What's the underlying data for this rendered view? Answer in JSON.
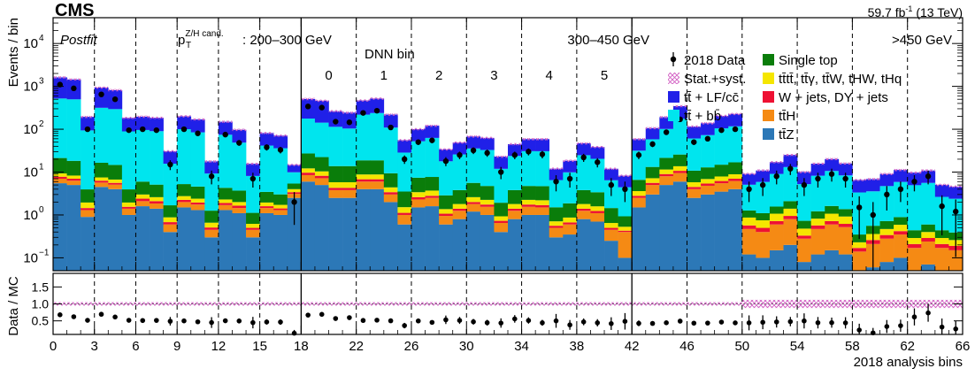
{
  "header": {
    "experiment": "CMS",
    "luminosity": "59.7 fb",
    "lumi_exponent": "-1",
    "energy": "(13 TeV)"
  },
  "annotations": {
    "fit_label": "Postfit",
    "pt_symbol": "p",
    "pt_subscript": "T",
    "pt_superscript": "Z/H cand.",
    "pt_range_1": ": 200–300 GeV",
    "pt_range_2": "300–450 GeV",
    "pt_range_3": ">450 GeV",
    "dnn_title": "DNN bin",
    "dnn_bins": [
      "0",
      "1",
      "2",
      "3",
      "4",
      "5"
    ]
  },
  "legend": [
    {
      "key": "data",
      "label": "2018 Data",
      "color": "#000000",
      "style": "marker"
    },
    {
      "key": "unc",
      "label": "Stat.+syst.",
      "color": "#d25fc3",
      "style": "hatch"
    },
    {
      "key": "ttlf",
      "label": "tt̄ + LF/cc̄",
      "color": "#2020e8",
      "style": "fill"
    },
    {
      "key": "ttbb",
      "label": "tt̄ + bb̄",
      "color": "#00e5ee",
      "style": "fill"
    },
    {
      "key": "singletop",
      "label": "Single top",
      "color": "#0a7d0a",
      "style": "fill"
    },
    {
      "key": "rare",
      "label": "tt̄tt̄, tt̄γ, tt̄W, tHW, tHq",
      "color": "#f5e600",
      "style": "fill"
    },
    {
      "key": "wjets",
      "label": "W + jets, DY + jets",
      "color": "#ee1133",
      "style": "fill"
    },
    {
      "key": "tth",
      "label": "tt̄H",
      "color": "#f58a14",
      "style": "fill"
    },
    {
      "key": "ttz",
      "label": "tt̄Z",
      "color": "#2c78b7",
      "style": "fill"
    }
  ],
  "axes": {
    "top_ylabel": "Events / bin",
    "ratio_ylabel": "Data / MC",
    "xlabel": "2018 analysis bins",
    "y_tick_labels": [
      "10",
      "10",
      "10",
      "10",
      "10",
      "10"
    ],
    "y_tick_exponents": [
      "−1",
      "0",
      "1",
      "2",
      "3",
      "4"
    ],
    "ratio_tick_labels": [
      "0.5",
      "1.0",
      "1.5"
    ],
    "x_tick_labels": [
      "0",
      "3",
      "6",
      "9",
      "12",
      "15",
      "18",
      "22",
      "26",
      "30",
      "34",
      "38",
      "42",
      "46",
      "50",
      "54",
      "58",
      "62",
      "66"
    ]
  },
  "chart_data": {
    "type": "bar",
    "stacked": true,
    "y_scale": "log",
    "ylim": [
      0.05,
      40000
    ],
    "ratio_ylim": [
      0.1,
      1.9
    ],
    "xlim": [
      0,
      66
    ],
    "x_ticks": [
      0,
      3,
      6,
      9,
      12,
      15,
      18,
      22,
      26,
      30,
      34,
      38,
      42,
      46,
      50,
      54,
      58,
      62,
      66
    ],
    "panel_boundaries": [
      18,
      42
    ],
    "dnn_boundaries": [
      3,
      6,
      9,
      12,
      15,
      22,
      26,
      30,
      34,
      38,
      46,
      50,
      54,
      58,
      62
    ],
    "stack_order": [
      "ttz",
      "tth",
      "wjets",
      "rare",
      "singletop",
      "ttbb",
      "ttlf"
    ],
    "bins": [
      {
        "ttz": 5.5,
        "tth": 1.5,
        "wjets": 0.8,
        "rare": 1.5,
        "singletop": 12,
        "ttbb": 500,
        "ttlf": 1100,
        "data": 1100
      },
      {
        "ttz": 5.0,
        "tth": 1.3,
        "wjets": 0.7,
        "rare": 1.3,
        "singletop": 10,
        "ttbb": 480,
        "ttlf": 950,
        "data": 900
      },
      {
        "ttz": 0.9,
        "tth": 0.4,
        "wjets": 0.15,
        "rare": 0.5,
        "singletop": 2,
        "ttbb": 90,
        "ttlf": 100,
        "data": 100
      },
      {
        "ttz": 4.5,
        "tth": 1.2,
        "wjets": 0.6,
        "rare": 1.2,
        "singletop": 9,
        "ttbb": 300,
        "ttlf": 620,
        "data": 650
      },
      {
        "ttz": 4.0,
        "tth": 1.1,
        "wjets": 0.5,
        "rare": 1.1,
        "singletop": 8,
        "ttbb": 280,
        "ttlf": 520,
        "data": 500
      },
      {
        "ttz": 1.0,
        "tth": 0.4,
        "wjets": 0.15,
        "rare": 0.4,
        "singletop": 2,
        "ttbb": 85,
        "ttlf": 95,
        "data": 95
      },
      {
        "ttz": 1.6,
        "tth": 0.5,
        "wjets": 0.3,
        "rare": 0.6,
        "singletop": 3,
        "ttbb": 90,
        "ttlf": 100,
        "data": 100
      },
      {
        "ttz": 1.4,
        "tth": 0.45,
        "wjets": 0.25,
        "rare": 0.5,
        "singletop": 2.5,
        "ttbb": 85,
        "ttlf": 95,
        "data": 95
      },
      {
        "ttz": 0.4,
        "tth": 0.2,
        "wjets": 0.08,
        "rare": 0.2,
        "singletop": 0.8,
        "ttbb": 14,
        "ttlf": 15,
        "data": 15
      },
      {
        "ttz": 1.5,
        "tth": 0.5,
        "wjets": 0.25,
        "rare": 0.5,
        "singletop": 2.5,
        "ttbb": 95,
        "ttlf": 100,
        "data": 100
      },
      {
        "ttz": 1.3,
        "tth": 0.45,
        "wjets": 0.2,
        "rare": 0.45,
        "singletop": 2.2,
        "ttbb": 80,
        "ttlf": 85,
        "data": 80
      },
      {
        "ttz": 0.3,
        "tth": 0.15,
        "wjets": 0.06,
        "rare": 0.15,
        "singletop": 0.6,
        "ttbb": 8,
        "ttlf": 8.5,
        "data": 8
      },
      {
        "ttz": 1.3,
        "tth": 0.4,
        "wjets": 0.2,
        "rare": 0.4,
        "singletop": 2,
        "ttbb": 70,
        "ttlf": 75,
        "data": 75
      },
      {
        "ttz": 1.1,
        "tth": 0.35,
        "wjets": 0.2,
        "rare": 0.35,
        "singletop": 1.7,
        "ttbb": 45,
        "ttlf": 48,
        "data": 48
      },
      {
        "ttz": 0.3,
        "tth": 0.15,
        "wjets": 0.05,
        "rare": 0.12,
        "singletop": 0.5,
        "ttbb": 7,
        "ttlf": 7.5,
        "data": 7
      },
      {
        "ttz": 1.1,
        "tth": 0.35,
        "wjets": 0.15,
        "rare": 0.35,
        "singletop": 1.5,
        "ttbb": 38,
        "ttlf": 40,
        "data": 38
      },
      {
        "ttz": 1.0,
        "tth": 0.3,
        "wjets": 0.12,
        "rare": 0.3,
        "singletop": 1.3,
        "ttbb": 33,
        "ttlf": 35,
        "data": 33
      },
      {
        "ttz": 2.5,
        "tth": 0.6,
        "wjets": 0.3,
        "rare": 0.6,
        "singletop": 1.4,
        "ttbb": 4.5,
        "ttlf": 4.8,
        "data": 2
      },
      {
        "ttz": 6,
        "tth": 2.5,
        "wjets": 1.2,
        "rare": 2.5,
        "singletop": 15,
        "ttbb": 150,
        "ttlf": 330,
        "data": 340
      },
      {
        "ttz": 5,
        "tth": 2.2,
        "wjets": 1.0,
        "rare": 2.2,
        "singletop": 12,
        "ttbb": 120,
        "ttlf": 320,
        "data": 320
      },
      {
        "ttz": 2.5,
        "tth": 1.3,
        "wjets": 0.5,
        "rare": 1.5,
        "singletop": 8,
        "ttbb": 100,
        "ttlf": 150,
        "data": 150
      },
      {
        "ttz": 2.5,
        "tth": 1.3,
        "wjets": 0.5,
        "rare": 1.5,
        "singletop": 8,
        "ttbb": 90,
        "ttlf": 140,
        "data": 145
      },
      {
        "ttz": 4,
        "tth": 2,
        "wjets": 0.8,
        "rare": 2,
        "singletop": 10,
        "ttbb": 200,
        "ttlf": 250,
        "data": 240
      },
      {
        "ttz": 4,
        "tth": 2,
        "wjets": 0.8,
        "rare": 2,
        "singletop": 10,
        "ttbb": 220,
        "ttlf": 280,
        "data": 270
      },
      {
        "ttz": 2,
        "tth": 1.0,
        "wjets": 0.4,
        "rare": 1.0,
        "singletop": 5,
        "ttbb": 100,
        "ttlf": 110,
        "data": 110
      },
      {
        "ttz": 0.6,
        "tth": 0.4,
        "wjets": 0.12,
        "rare": 0.4,
        "singletop": 2,
        "ttbb": 25,
        "ttlf": 27,
        "data": 20
      },
      {
        "ttz": 1.5,
        "tth": 0.8,
        "wjets": 0.3,
        "rare": 0.8,
        "singletop": 4,
        "ttbb": 45,
        "ttlf": 48,
        "data": 50
      },
      {
        "ttz": 1.6,
        "tth": 0.9,
        "wjets": 0.3,
        "rare": 0.9,
        "singletop": 4,
        "ttbb": 55,
        "ttlf": 58,
        "data": 55
      },
      {
        "ttz": 0.6,
        "tth": 0.35,
        "wjets": 0.12,
        "rare": 0.3,
        "singletop": 1.5,
        "ttbb": 15,
        "ttlf": 16,
        "data": 18
      },
      {
        "ttz": 0.8,
        "tth": 0.45,
        "wjets": 0.15,
        "rare": 0.4,
        "singletop": 2,
        "ttbb": 22,
        "ttlf": 23,
        "data": 25
      },
      {
        "ttz": 1.2,
        "tth": 0.6,
        "wjets": 0.2,
        "rare": 0.6,
        "singletop": 3,
        "ttbb": 30,
        "ttlf": 32,
        "data": 32
      },
      {
        "ttz": 1.0,
        "tth": 0.55,
        "wjets": 0.2,
        "rare": 0.5,
        "singletop": 2.5,
        "ttbb": 28,
        "ttlf": 30,
        "data": 28
      },
      {
        "ttz": 0.4,
        "tth": 0.25,
        "wjets": 0.08,
        "rare": 0.2,
        "singletop": 1,
        "ttbb": 10,
        "ttlf": 11,
        "data": 10
      },
      {
        "ttz": 0.8,
        "tth": 0.45,
        "wjets": 0.15,
        "rare": 0.4,
        "singletop": 2,
        "ttbb": 20,
        "ttlf": 21,
        "data": 25
      },
      {
        "ttz": 1.0,
        "tth": 0.55,
        "wjets": 0.2,
        "rare": 0.5,
        "singletop": 2.5,
        "ttbb": 26,
        "ttlf": 28,
        "data": 30
      },
      {
        "ttz": 1.0,
        "tth": 0.5,
        "wjets": 0.2,
        "rare": 0.5,
        "singletop": 2.5,
        "ttbb": 26,
        "ttlf": 28,
        "data": 26
      },
      {
        "ttz": 0.3,
        "tth": 0.2,
        "wjets": 0.06,
        "rare": 0.15,
        "singletop": 0.8,
        "ttbb": 5,
        "ttlf": 5.5,
        "data": 6
      },
      {
        "ttz": 0.35,
        "tth": 0.25,
        "wjets": 0.07,
        "rare": 0.2,
        "singletop": 1,
        "ttbb": 8,
        "ttlf": 8.5,
        "data": 7
      },
      {
        "ttz": 0.8,
        "tth": 0.45,
        "wjets": 0.15,
        "rare": 0.4,
        "singletop": 2,
        "ttbb": 21,
        "ttlf": 22,
        "data": 22
      },
      {
        "ttz": 0.7,
        "tth": 0.4,
        "wjets": 0.14,
        "rare": 0.35,
        "singletop": 1.8,
        "ttbb": 17,
        "ttlf": 18,
        "data": 17
      },
      {
        "ttz": 0.25,
        "tth": 0.2,
        "wjets": 0.05,
        "rare": 0.15,
        "singletop": 0.8,
        "ttbb": 5,
        "ttlf": 5.5,
        "data": 5
      },
      {
        "ttz": 0.1,
        "tth": 0.3,
        "wjets": 0.03,
        "rare": 0.1,
        "singletop": 0.4,
        "ttbb": 3.5,
        "ttlf": 3.8,
        "data": 4
      },
      {
        "ttz": 1.5,
        "tth": 1.0,
        "wjets": 0.3,
        "rare": 0.8,
        "singletop": 3,
        "ttbb": 25,
        "ttlf": 27,
        "data": 25
      },
      {
        "ttz": 3,
        "tth": 2,
        "wjets": 0.6,
        "rare": 1.6,
        "singletop": 6,
        "ttbb": 45,
        "ttlf": 48,
        "data": 45
      },
      {
        "ttz": 5,
        "tth": 3,
        "wjets": 1.0,
        "rare": 2.5,
        "singletop": 10,
        "ttbb": 80,
        "ttlf": 90,
        "data": 85
      },
      {
        "ttz": 6,
        "tth": 3.5,
        "wjets": 1.2,
        "rare": 3,
        "singletop": 12,
        "ttbb": 150,
        "ttlf": 170,
        "data": 170
      },
      {
        "ttz": 2.5,
        "tth": 1.5,
        "wjets": 0.5,
        "rare": 1.3,
        "singletop": 5,
        "ttbb": 50,
        "ttlf": 55,
        "data": 50
      },
      {
        "ttz": 3,
        "tth": 1.8,
        "wjets": 0.6,
        "rare": 1.5,
        "singletop": 6,
        "ttbb": 60,
        "ttlf": 65,
        "data": 60
      },
      {
        "ttz": 3.5,
        "tth": 2,
        "wjets": 0.7,
        "rare": 1.7,
        "singletop": 7,
        "ttbb": 90,
        "ttlf": 100,
        "data": 95
      },
      {
        "ttz": 4,
        "tth": 2.2,
        "wjets": 0.8,
        "rare": 1.9,
        "singletop": 8,
        "ttbb": 100,
        "ttlf": 110,
        "data": 100
      },
      {
        "ttz": 0.12,
        "tth": 0.35,
        "wjets": 0.1,
        "rare": 0.3,
        "singletop": 0.4,
        "ttbb": 3.8,
        "ttlf": 4.0,
        "data": 4
      },
      {
        "ttz": 0.1,
        "tth": 0.3,
        "wjets": 0.1,
        "rare": 0.25,
        "singletop": 0.35,
        "ttbb": 4.8,
        "ttlf": 5.0,
        "data": 5
      },
      {
        "ttz": 0.15,
        "tth": 0.45,
        "wjets": 0.12,
        "rare": 0.35,
        "singletop": 0.5,
        "ttbb": 7.5,
        "ttlf": 8,
        "data": 8
      },
      {
        "ttz": 0.2,
        "tth": 0.6,
        "wjets": 0.15,
        "rare": 0.45,
        "singletop": 0.7,
        "ttbb": 11,
        "ttlf": 12,
        "data": 12
      },
      {
        "ttz": 0.08,
        "tth": 0.2,
        "wjets": 0.05,
        "rare": 0.15,
        "singletop": 0.25,
        "ttbb": 4.5,
        "ttlf": 4.8,
        "data": 5
      },
      {
        "ttz": 0.12,
        "tth": 0.35,
        "wjets": 0.1,
        "rare": 0.25,
        "singletop": 0.4,
        "ttbb": 7,
        "ttlf": 7.5,
        "data": 7
      },
      {
        "ttz": 0.15,
        "tth": 0.45,
        "wjets": 0.12,
        "rare": 0.35,
        "singletop": 0.55,
        "ttbb": 9,
        "ttlf": 9.5,
        "data": 9
      },
      {
        "ttz": 0.12,
        "tth": 0.4,
        "wjets": 0.1,
        "rare": 0.3,
        "singletop": 0.45,
        "ttbb": 7,
        "ttlf": 7.5,
        "data": 7
      },
      {
        "ttz": 0.04,
        "tth": 0.1,
        "wjets": 0.03,
        "rare": 0.06,
        "singletop": 0.12,
        "ttbb": 3,
        "ttlf": 3.2,
        "data": 1.5
      },
      {
        "ttz": 0.06,
        "tth": 0.15,
        "wjets": 0.05,
        "rare": 0.1,
        "singletop": 0.2,
        "ttbb": 3,
        "ttlf": 3.3,
        "data": 1
      },
      {
        "ttz": 0.08,
        "tth": 0.2,
        "wjets": 0.06,
        "rare": 0.13,
        "singletop": 0.25,
        "ttbb": 4,
        "ttlf": 4.3,
        "data": 3
      },
      {
        "ttz": 0.1,
        "tth": 0.25,
        "wjets": 0.07,
        "rare": 0.17,
        "singletop": 0.3,
        "ttbb": 5,
        "ttlf": 5.3,
        "data": 4
      },
      {
        "ttz": 0.05,
        "tth": 0.12,
        "wjets": 0.04,
        "rare": 0.08,
        "singletop": 0.15,
        "ttbb": 4.5,
        "ttlf": 4.8,
        "data": 6
      },
      {
        "ttz": 0.07,
        "tth": 0.17,
        "wjets": 0.05,
        "rare": 0.11,
        "singletop": 0.2,
        "ttbb": 5,
        "ttlf": 5.3,
        "data": 8
      },
      {
        "ttz": 0.05,
        "tth": 0.12,
        "wjets": 0.04,
        "rare": 0.08,
        "singletop": 0.15,
        "ttbb": 2.2,
        "ttlf": 2.4,
        "data": 1.6
      },
      {
        "ttz": 0.05,
        "tth": 0.1,
        "wjets": 0.04,
        "rare": 0.07,
        "singletop": 0.13,
        "ttbb": 2,
        "ttlf": 2.2,
        "data": 1.2
      }
    ]
  }
}
